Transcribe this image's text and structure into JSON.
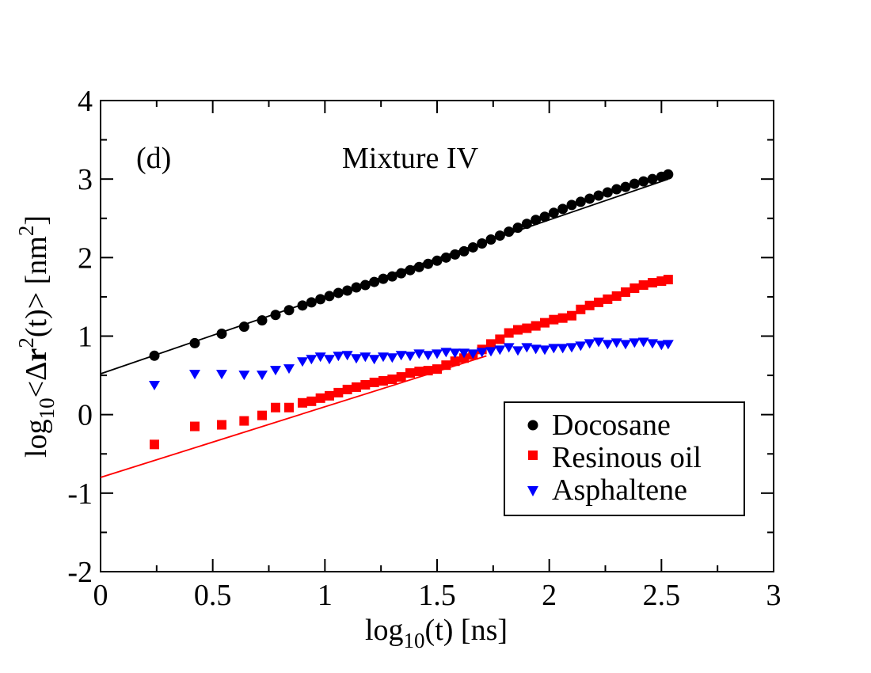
{
  "chart_data": {
    "type": "scatter",
    "panel_label": "(d)",
    "title": "Mixture IV",
    "xlabel": {
      "pre": "log",
      "sub": "10",
      "post": "(t) [ns]"
    },
    "ylabel": {
      "pre": "log",
      "sub": "10",
      "mid1": "<Δ",
      "bold": "r",
      "sup1": "2",
      "mid2": "(t)> [nm",
      "sup2": "2",
      "post": "]"
    },
    "xlim": [
      0,
      3
    ],
    "ylim": [
      -2,
      4
    ],
    "xticks": [
      0,
      0.5,
      1,
      1.5,
      2,
      2.5,
      3
    ],
    "xtick_labels": [
      "0",
      "0.5",
      "1",
      "1.5",
      "2",
      "2.5",
      "3"
    ],
    "yticks": [
      -2,
      -1,
      0,
      1,
      2,
      3,
      4
    ],
    "ytick_labels": [
      "-2",
      "-1",
      "0",
      "1",
      "2",
      "3",
      "4"
    ],
    "legend_position": "lower-right",
    "series": [
      {
        "name": "Docosane",
        "color": "#000000",
        "marker": "circle",
        "points": [
          [
            0.24,
            0.75
          ],
          [
            0.42,
            0.91
          ],
          [
            0.54,
            1.03
          ],
          [
            0.64,
            1.12
          ],
          [
            0.72,
            1.2
          ],
          [
            0.78,
            1.27
          ],
          [
            0.84,
            1.33
          ],
          [
            0.9,
            1.39
          ],
          [
            0.94,
            1.43
          ],
          [
            0.98,
            1.47
          ],
          [
            1.02,
            1.51
          ],
          [
            1.06,
            1.55
          ],
          [
            1.1,
            1.58
          ],
          [
            1.14,
            1.62
          ],
          [
            1.18,
            1.65
          ],
          [
            1.22,
            1.69
          ],
          [
            1.26,
            1.73
          ],
          [
            1.3,
            1.76
          ],
          [
            1.34,
            1.8
          ],
          [
            1.38,
            1.84
          ],
          [
            1.42,
            1.88
          ],
          [
            1.46,
            1.92
          ],
          [
            1.5,
            1.96
          ],
          [
            1.54,
            2.0
          ],
          [
            1.58,
            2.04
          ],
          [
            1.62,
            2.08
          ],
          [
            1.66,
            2.13
          ],
          [
            1.7,
            2.18
          ],
          [
            1.74,
            2.23
          ],
          [
            1.78,
            2.28
          ],
          [
            1.82,
            2.33
          ],
          [
            1.86,
            2.38
          ],
          [
            1.9,
            2.43
          ],
          [
            1.94,
            2.48
          ],
          [
            1.98,
            2.52
          ],
          [
            2.02,
            2.57
          ],
          [
            2.06,
            2.62
          ],
          [
            2.1,
            2.67
          ],
          [
            2.14,
            2.71
          ],
          [
            2.18,
            2.75
          ],
          [
            2.22,
            2.79
          ],
          [
            2.26,
            2.83
          ],
          [
            2.3,
            2.87
          ],
          [
            2.34,
            2.9
          ],
          [
            2.38,
            2.94
          ],
          [
            2.42,
            2.97
          ],
          [
            2.46,
            3.0
          ],
          [
            2.5,
            3.03
          ],
          [
            2.53,
            3.06
          ]
        ]
      },
      {
        "name": "Resinous oil",
        "color": "#ff0000",
        "marker": "square",
        "points": [
          [
            0.24,
            -0.38
          ],
          [
            0.42,
            -0.15
          ],
          [
            0.54,
            -0.13
          ],
          [
            0.64,
            -0.08
          ],
          [
            0.72,
            -0.01
          ],
          [
            0.78,
            0.09
          ],
          [
            0.84,
            0.09
          ],
          [
            0.9,
            0.15
          ],
          [
            0.94,
            0.17
          ],
          [
            0.98,
            0.21
          ],
          [
            1.02,
            0.24
          ],
          [
            1.06,
            0.28
          ],
          [
            1.1,
            0.32
          ],
          [
            1.14,
            0.35
          ],
          [
            1.18,
            0.38
          ],
          [
            1.22,
            0.41
          ],
          [
            1.26,
            0.43
          ],
          [
            1.3,
            0.45
          ],
          [
            1.34,
            0.48
          ],
          [
            1.38,
            0.53
          ],
          [
            1.42,
            0.55
          ],
          [
            1.46,
            0.56
          ],
          [
            1.5,
            0.58
          ],
          [
            1.54,
            0.63
          ],
          [
            1.58,
            0.68
          ],
          [
            1.62,
            0.72
          ],
          [
            1.66,
            0.76
          ],
          [
            1.7,
            0.83
          ],
          [
            1.74,
            0.9
          ],
          [
            1.78,
            0.96
          ],
          [
            1.82,
            1.04
          ],
          [
            1.86,
            1.08
          ],
          [
            1.9,
            1.1
          ],
          [
            1.94,
            1.13
          ],
          [
            1.98,
            1.17
          ],
          [
            2.02,
            1.21
          ],
          [
            2.06,
            1.23
          ],
          [
            2.1,
            1.26
          ],
          [
            2.14,
            1.34
          ],
          [
            2.18,
            1.39
          ],
          [
            2.22,
            1.43
          ],
          [
            2.26,
            1.47
          ],
          [
            2.3,
            1.51
          ],
          [
            2.34,
            1.56
          ],
          [
            2.38,
            1.61
          ],
          [
            2.42,
            1.65
          ],
          [
            2.46,
            1.68
          ],
          [
            2.5,
            1.7
          ],
          [
            2.53,
            1.72
          ]
        ]
      },
      {
        "name": "Asphaltene",
        "color": "#0000ff",
        "marker": "triangle-down",
        "points": [
          [
            0.24,
            0.38
          ],
          [
            0.42,
            0.52
          ],
          [
            0.54,
            0.52
          ],
          [
            0.64,
            0.51
          ],
          [
            0.72,
            0.51
          ],
          [
            0.78,
            0.57
          ],
          [
            0.84,
            0.59
          ],
          [
            0.9,
            0.68
          ],
          [
            0.94,
            0.71
          ],
          [
            0.98,
            0.74
          ],
          [
            1.02,
            0.71
          ],
          [
            1.06,
            0.75
          ],
          [
            1.1,
            0.76
          ],
          [
            1.14,
            0.72
          ],
          [
            1.18,
            0.74
          ],
          [
            1.22,
            0.71
          ],
          [
            1.26,
            0.74
          ],
          [
            1.3,
            0.73
          ],
          [
            1.34,
            0.76
          ],
          [
            1.38,
            0.75
          ],
          [
            1.42,
            0.78
          ],
          [
            1.46,
            0.76
          ],
          [
            1.5,
            0.78
          ],
          [
            1.54,
            0.8
          ],
          [
            1.58,
            0.79
          ],
          [
            1.62,
            0.79
          ],
          [
            1.66,
            0.78
          ],
          [
            1.7,
            0.8
          ],
          [
            1.74,
            0.81
          ],
          [
            1.78,
            0.83
          ],
          [
            1.82,
            0.86
          ],
          [
            1.86,
            0.82
          ],
          [
            1.9,
            0.86
          ],
          [
            1.94,
            0.84
          ],
          [
            1.98,
            0.83
          ],
          [
            2.02,
            0.85
          ],
          [
            2.06,
            0.85
          ],
          [
            2.1,
            0.86
          ],
          [
            2.14,
            0.88
          ],
          [
            2.18,
            0.91
          ],
          [
            2.22,
            0.93
          ],
          [
            2.26,
            0.9
          ],
          [
            2.3,
            0.92
          ],
          [
            2.34,
            0.9
          ],
          [
            2.38,
            0.92
          ],
          [
            2.42,
            0.93
          ],
          [
            2.46,
            0.91
          ],
          [
            2.5,
            0.89
          ],
          [
            2.53,
            0.9
          ]
        ]
      }
    ],
    "fit_lines": [
      {
        "series": "Docosane",
        "color": "#000000",
        "intercept": 0.52,
        "slope": 0.98,
        "x_range": [
          0,
          2.53
        ]
      },
      {
        "series": "Resinous oil",
        "color": "#ff0000",
        "intercept": -0.8,
        "slope": 0.9,
        "x_range": [
          0,
          1.72
        ]
      }
    ]
  }
}
